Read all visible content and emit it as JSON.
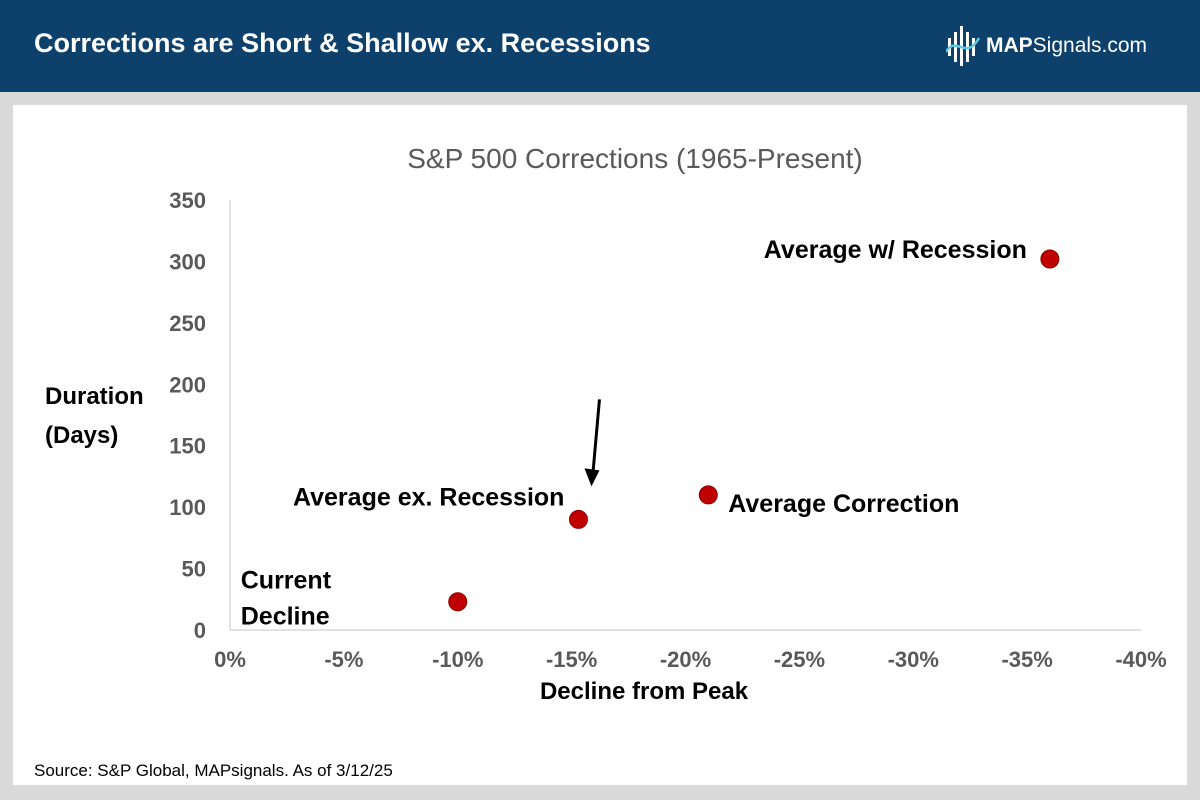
{
  "header": {
    "title": "Corrections are Short & Shallow ex. Recessions",
    "brand_bold": "MAP",
    "brand_rest": "Signals.com"
  },
  "colors": {
    "header_bg": "#0d416b",
    "point_fill": "#c00000",
    "axis_text": "#595959",
    "grid": "#d9d9d9"
  },
  "chart_data": {
    "type": "scatter",
    "title": "S&P 500 Corrections (1965-Present)",
    "xlabel": "Decline from Peak",
    "ylabel_lines": [
      "Duration",
      "(Days)"
    ],
    "xlim": [
      0,
      -40
    ],
    "ylim": [
      0,
      350
    ],
    "xticks": [
      0,
      -5,
      -10,
      -15,
      -20,
      -25,
      -30,
      -35,
      -40
    ],
    "xtick_labels": [
      "0%",
      "-5%",
      "-10%",
      "-15%",
      "-20%",
      "-25%",
      "-30%",
      "-35%",
      "-40%"
    ],
    "yticks": [
      0,
      50,
      100,
      150,
      200,
      250,
      300,
      350
    ],
    "ytick_labels": [
      "0",
      "50",
      "100",
      "150",
      "200",
      "250",
      "300",
      "350"
    ],
    "points": [
      {
        "name": "Current Decline",
        "label_lines": [
          "Current",
          "Decline"
        ],
        "x": -10,
        "y": 23
      },
      {
        "name": "Average ex. Recession",
        "label_lines": [
          "Average ex. Recession"
        ],
        "x": -15.3,
        "y": 90,
        "arrow": true
      },
      {
        "name": "Average Correction",
        "label_lines": [
          "Average Correction"
        ],
        "x": -21,
        "y": 110
      },
      {
        "name": "Average w/ Recession",
        "label_lines": [
          "Average w/ Recession"
        ],
        "x": -36,
        "y": 302
      }
    ]
  },
  "footer": {
    "source": "Source: S&P Global, MAPsignals. As of 3/12/25"
  }
}
